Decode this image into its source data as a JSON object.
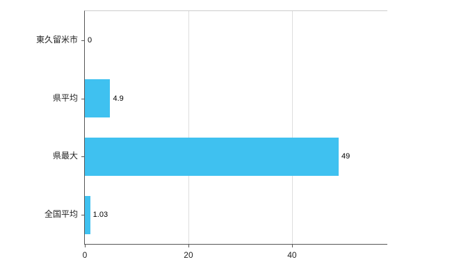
{
  "chart_data": {
    "type": "bar",
    "orientation": "horizontal",
    "title": "",
    "xlabel": "",
    "ylabel": "",
    "categories": [
      "東久留米市",
      "県平均",
      "県最大",
      "全国平均"
    ],
    "values": [
      0,
      4.9,
      49,
      1.03
    ],
    "value_labels": [
      "0",
      "4.9",
      "49",
      "1.03"
    ],
    "x_ticks": [
      0,
      20,
      40
    ],
    "xlim": [
      0,
      58.4
    ],
    "grid": true,
    "legend": "none",
    "bar_color": "#3fc1f0"
  }
}
